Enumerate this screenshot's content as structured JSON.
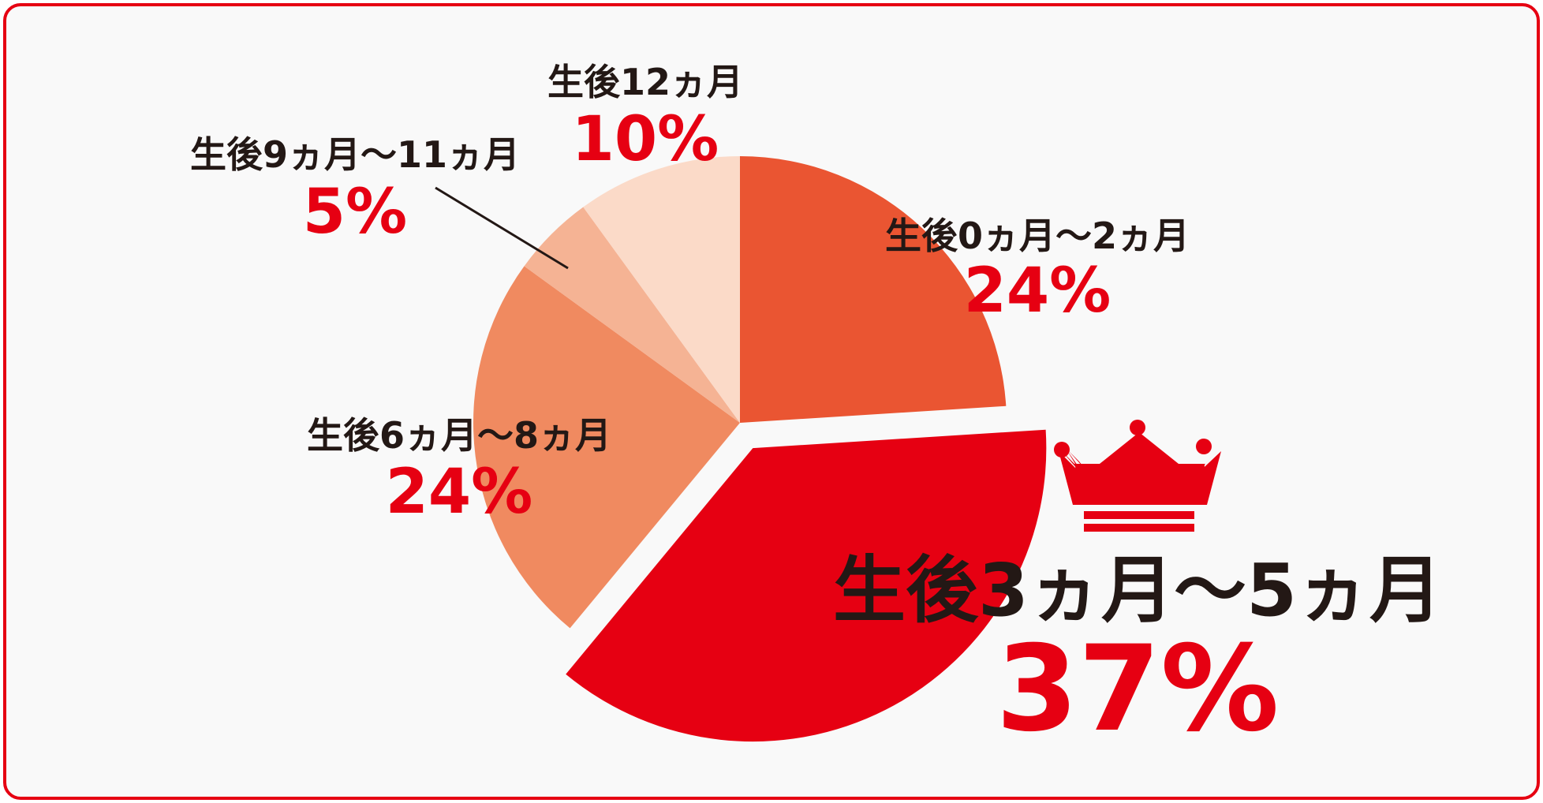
{
  "chart_data": {
    "type": "pie",
    "slices": [
      {
        "label": "生後0ヵ月〜2ヵ月",
        "value": 24,
        "display": "24%",
        "color": "#ea5532"
      },
      {
        "label": "生後3ヵ月〜5ヵ月",
        "value": 37,
        "display": "37%",
        "color": "#e60012",
        "highlight": true
      },
      {
        "label": "生後6ヵ月〜8ヵ月",
        "value": 24,
        "display": "24%",
        "color": "#f08a60"
      },
      {
        "label": "生後9ヵ月〜11ヵ月",
        "value": 5,
        "display": "5%",
        "color": "#f5b394"
      },
      {
        "label": "生後12ヵ月",
        "value": 10,
        "display": "10%",
        "color": "#fbdac8"
      }
    ],
    "start": "12 o'clock",
    "direction": "clockwise",
    "highlight_icon": "crown-icon",
    "accent_color": "#e60012",
    "text_color": "#231815"
  }
}
